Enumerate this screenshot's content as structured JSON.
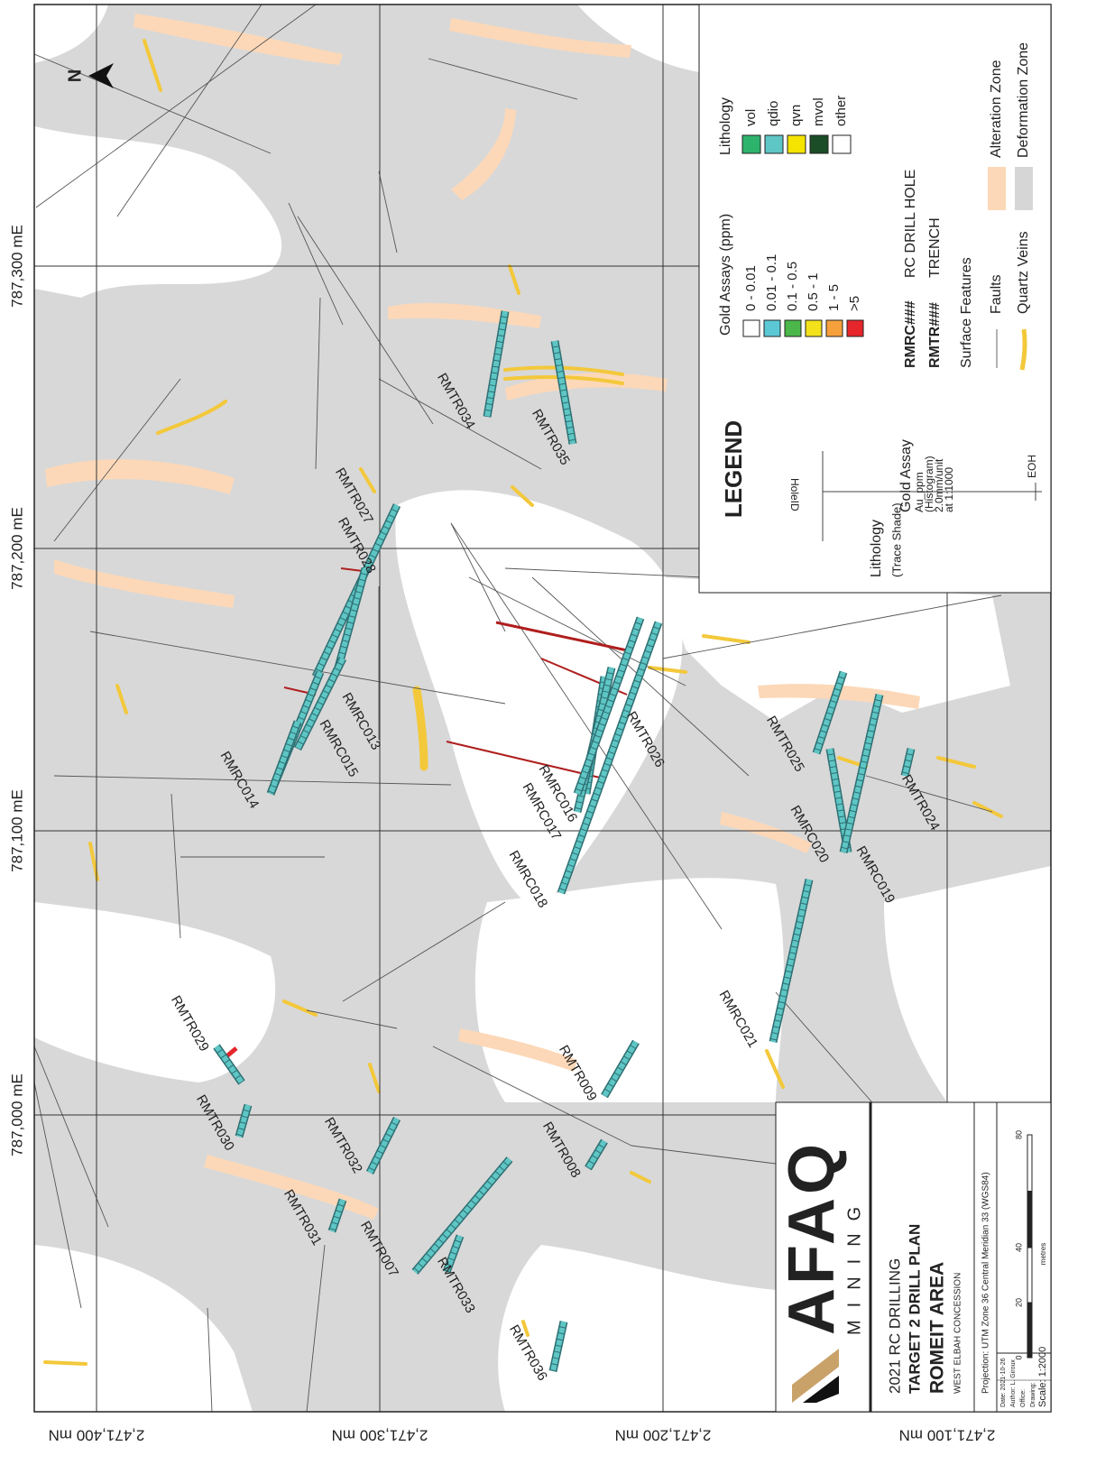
{
  "grid": {
    "easting": [
      "787,300 mE",
      "787,200 mE",
      "787,100 mE",
      "787,000 mE"
    ],
    "northing": [
      "2,471,400 mN",
      "2,471,300 mN",
      "2,471,200 mN",
      "2,471,100 mN"
    ]
  },
  "north_arrow": "N",
  "holes": [
    "RMTR034",
    "RMTR035",
    "RMTR027",
    "RMTR028",
    "RMRC013",
    "RMRC015",
    "RMRC014",
    "RMRC016",
    "RMRC017",
    "RMRC018",
    "RMTR026",
    "RMTR025",
    "RMTR024",
    "RMRC020",
    "RMRC019",
    "RMRC021",
    "RMTR029",
    "RMTR030",
    "RMTR032",
    "RMTR031",
    "RMTR007",
    "RMTR033",
    "RMTR036",
    "RMTR009",
    "RMTR008"
  ],
  "legend": {
    "title": "LEGEND",
    "lithology_trace": {
      "label": "Lithology",
      "note": "(Trace Shade)"
    },
    "hole_id": "HoleID",
    "gold_assay": {
      "label": "Gold Assay",
      "lines": [
        "Au_ppm",
        "(Histogram)",
        "2.0mm/unit",
        "at 1:1000"
      ]
    },
    "eoh": "EOH",
    "gold_assays": {
      "title": "Gold Assays (ppm)",
      "items": [
        {
          "label": "0 - 0.01",
          "color": "#ffffff"
        },
        {
          "label": "0.01 - 0.1",
          "color": "#5cc8d6"
        },
        {
          "label": "0.1 - 0.5",
          "color": "#4bb74a"
        },
        {
          "label": "0.5 - 1",
          "color": "#f3e21b"
        },
        {
          "label": "1 - 5",
          "color": "#f5a03b"
        },
        {
          "label": ">5",
          "color": "#e6262b"
        }
      ]
    },
    "lithology": {
      "title": "Lithology",
      "items": [
        {
          "label": "vol",
          "color": "#2db36c"
        },
        {
          "label": "qdio",
          "color": "#5ec6c4"
        },
        {
          "label": "qvn",
          "color": "#f4e400"
        },
        {
          "label": "mvol",
          "color": "#1b4d27"
        },
        {
          "label": "other",
          "color": "#ffffff"
        }
      ]
    },
    "hole_types": [
      {
        "code": "RMRC###",
        "label": "RC DRILL HOLE"
      },
      {
        "code": "RMTR###",
        "label": "TRENCH"
      }
    ],
    "surface_features": {
      "title": "Surface Features",
      "items": [
        {
          "label": "Faults",
          "color": "#666666"
        },
        {
          "label": "Quartz Veins",
          "color": "#f3c83a"
        }
      ]
    },
    "zones": [
      {
        "label": "Alteration Zone",
        "color": "#fcd8b8"
      },
      {
        "label": "Deformation Zone",
        "color": "#d6d6d6"
      }
    ]
  },
  "title_block": {
    "logo": "AFAQ",
    "logo_sub": "MINING",
    "line1": "2021 RC DRILLING",
    "line2": "TARGET 2 DRILL PLAN",
    "line3": "ROMEIT AREA",
    "line4": "WEST ELBAH CONCESSION",
    "projection": "Projection: UTM Zone 36 Central Meridian 33 (WGS84)",
    "meta": [
      "Date: 2021-10-26",
      "Author: L. Giroux",
      "Office:",
      "Drawing:",
      "Scale: 1:2000"
    ],
    "scale_ticks": [
      0,
      20,
      40,
      80
    ],
    "scale_unit": "metres"
  }
}
